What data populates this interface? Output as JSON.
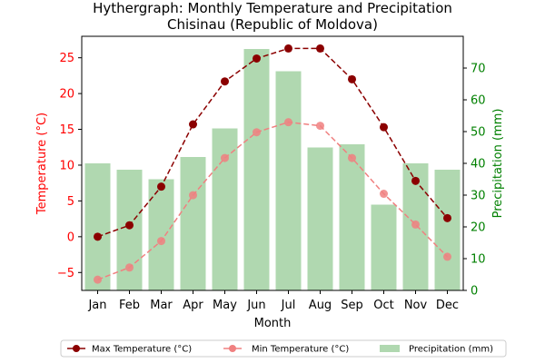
{
  "chart_data": {
    "type": "line",
    "title": "Hythergraph: Monthly Temperature and Precipitation",
    "subtitle": "Chisinau (Republic of Moldova)",
    "xlabel": "Month",
    "ylabel_left": "Temperature (°C)",
    "ylabel_right": "Precipitation (mm)",
    "categories": [
      "Jan",
      "Feb",
      "Mar",
      "Apr",
      "May",
      "Jun",
      "Jul",
      "Aug",
      "Sep",
      "Oct",
      "Nov",
      "Dec"
    ],
    "y_left_range": [
      -7.5,
      28
    ],
    "y_left_ticks": [
      -5,
      0,
      5,
      10,
      15,
      20,
      25
    ],
    "y_right_range": [
      0,
      80
    ],
    "y_right_ticks": [
      0,
      10,
      20,
      30,
      40,
      50,
      60,
      70
    ],
    "series": [
      {
        "name": "Max Temperature (°C)",
        "kind": "line",
        "axis": "left",
        "color": "#8b0000",
        "values": [
          0.0,
          1.6,
          7.0,
          15.7,
          21.7,
          24.9,
          26.3,
          26.3,
          22.0,
          15.3,
          7.8,
          2.6
        ]
      },
      {
        "name": "Min Temperature (°C)",
        "kind": "line",
        "axis": "left",
        "color": "#f08080",
        "values": [
          -6.0,
          -4.3,
          -0.6,
          5.8,
          11.0,
          14.6,
          16.0,
          15.5,
          11.0,
          6.0,
          1.7,
          -2.8
        ]
      },
      {
        "name": "Precipitation (mm)",
        "kind": "bar",
        "axis": "right",
        "color": "#b0d8b0",
        "values": [
          40,
          38,
          35,
          42,
          51,
          76,
          69,
          45,
          46,
          27,
          40,
          38
        ]
      }
    ],
    "grid": false,
    "legend_position": "bottom"
  }
}
